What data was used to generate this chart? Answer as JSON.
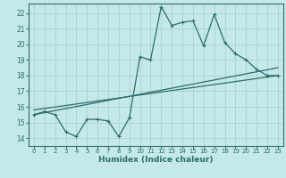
{
  "xlabel": "Humidex (Indice chaleur)",
  "bg_color": "#c5e8e8",
  "grid_color": "#b0d4d4",
  "line_color": "#2a6e6e",
  "xlim": [
    -0.5,
    23.5
  ],
  "ylim": [
    13.5,
    22.6
  ],
  "xticks": [
    0,
    1,
    2,
    3,
    4,
    5,
    6,
    7,
    8,
    9,
    10,
    11,
    12,
    13,
    14,
    15,
    16,
    17,
    18,
    19,
    20,
    21,
    22,
    23
  ],
  "yticks": [
    14,
    15,
    16,
    17,
    18,
    19,
    20,
    21,
    22
  ],
  "line1_x": [
    0,
    1,
    2,
    3,
    4,
    5,
    6,
    7,
    8,
    9,
    10,
    11,
    12,
    13,
    14,
    15,
    16,
    17,
    18,
    19,
    20,
    21,
    22,
    23
  ],
  "line1_y": [
    15.5,
    15.7,
    15.5,
    14.4,
    14.1,
    15.2,
    15.2,
    15.1,
    14.1,
    15.3,
    19.2,
    19.0,
    22.4,
    21.2,
    21.4,
    21.5,
    19.9,
    21.9,
    20.1,
    19.4,
    19.0,
    18.4,
    18.0,
    18.0
  ],
  "line2_x": [
    0,
    23
  ],
  "line2_y": [
    15.5,
    18.5
  ],
  "line3_x": [
    0,
    23
  ],
  "line3_y": [
    15.8,
    18.0
  ],
  "xtick_fontsize": 5.0,
  "ytick_fontsize": 5.5,
  "xlabel_fontsize": 6.5
}
